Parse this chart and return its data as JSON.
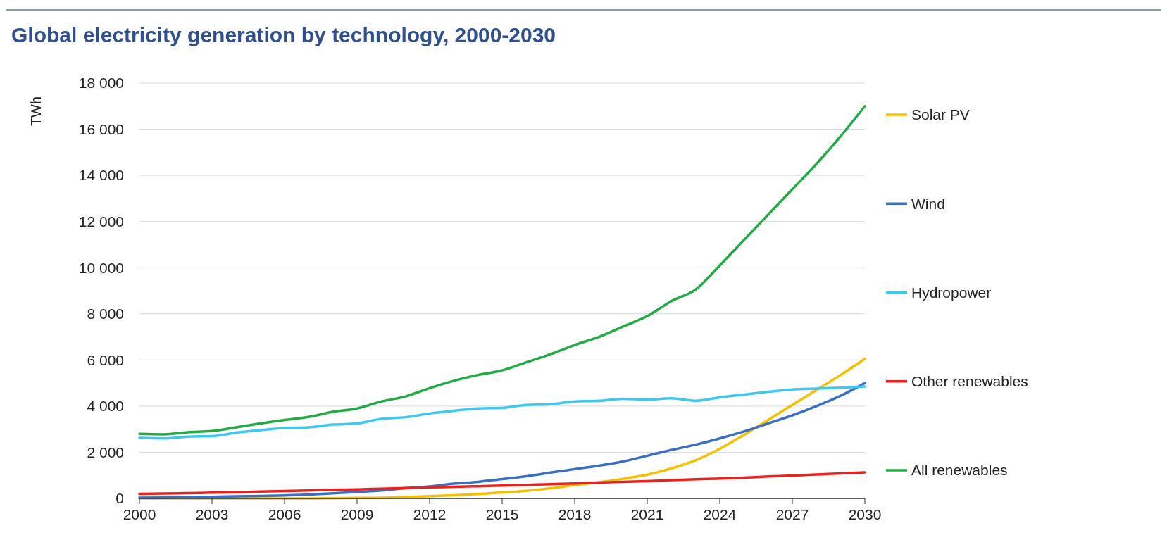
{
  "chart_data": {
    "type": "line",
    "title": "Global electricity generation by technology, 2000-2030",
    "ylabel": "TWh",
    "x": [
      2000,
      2001,
      2002,
      2003,
      2004,
      2005,
      2006,
      2007,
      2008,
      2009,
      2010,
      2011,
      2012,
      2013,
      2014,
      2015,
      2016,
      2017,
      2018,
      2019,
      2020,
      2021,
      2022,
      2023,
      2024,
      2025,
      2026,
      2027,
      2028,
      2029,
      2030
    ],
    "series": [
      {
        "name": "Solar PV",
        "color": "#f5c000",
        "values": [
          0,
          0,
          0,
          0,
          0,
          0,
          0,
          0,
          10,
          20,
          30,
          60,
          100,
          140,
          190,
          260,
          330,
          440,
          580,
          700,
          850,
          1030,
          1300,
          1650,
          2150,
          2750,
          3400,
          4050,
          4700,
          5350,
          6050
        ]
      },
      {
        "name": "Wind",
        "color": "#3a6fc4",
        "values": [
          30,
          40,
          60,
          70,
          90,
          110,
          130,
          170,
          220,
          280,
          340,
          440,
          520,
          640,
          720,
          840,
          960,
          1120,
          1270,
          1420,
          1600,
          1850,
          2100,
          2330,
          2600,
          2900,
          3250,
          3600,
          4000,
          4450,
          5000
        ]
      },
      {
        "name": "Hydropower",
        "color": "#3ec8f0",
        "values": [
          2620,
          2600,
          2680,
          2700,
          2850,
          2960,
          3050,
          3080,
          3200,
          3250,
          3450,
          3520,
          3680,
          3800,
          3900,
          3920,
          4050,
          4080,
          4200,
          4230,
          4320,
          4280,
          4340,
          4230,
          4380,
          4500,
          4620,
          4720,
          4760,
          4800,
          4850
        ]
      },
      {
        "name": "Other renewables",
        "color": "#e8231f",
        "values": [
          200,
          210,
          230,
          250,
          270,
          300,
          320,
          340,
          370,
          390,
          420,
          450,
          480,
          500,
          530,
          560,
          590,
          620,
          650,
          690,
          720,
          750,
          790,
          830,
          860,
          900,
          950,
          990,
          1040,
          1080,
          1130
        ]
      },
      {
        "name": "All renewables",
        "color": "#22aa44",
        "values": [
          2800,
          2780,
          2870,
          2920,
          3080,
          3250,
          3400,
          3530,
          3750,
          3900,
          4200,
          4420,
          4780,
          5100,
          5350,
          5550,
          5900,
          6250,
          6650,
          7000,
          7450,
          7900,
          8550,
          9050,
          10100,
          11200,
          12300,
          13400,
          14500,
          15700,
          17000
        ]
      }
    ],
    "xlim": [
      2000,
      2030
    ],
    "xticks": [
      2000,
      2003,
      2006,
      2009,
      2012,
      2015,
      2018,
      2021,
      2024,
      2027,
      2030
    ],
    "ylim": [
      0,
      18000
    ],
    "yticks": [
      0,
      {
        "value": 2000,
        "label": "2 000"
      },
      {
        "value": 4000,
        "label": "4 000"
      },
      {
        "value": 6000,
        "label": "6 000"
      },
      {
        "value": 8000,
        "label": "8 000"
      },
      {
        "value": 10000,
        "label": "10 000"
      },
      {
        "value": 12000,
        "label": "12 000"
      },
      {
        "value": 14000,
        "label": "14 000"
      },
      {
        "value": 16000,
        "label": "16 000"
      },
      {
        "value": 18000,
        "label": "18 000"
      }
    ],
    "grid": "y",
    "legend": "right",
    "marker": "none",
    "line_style": "solid"
  }
}
